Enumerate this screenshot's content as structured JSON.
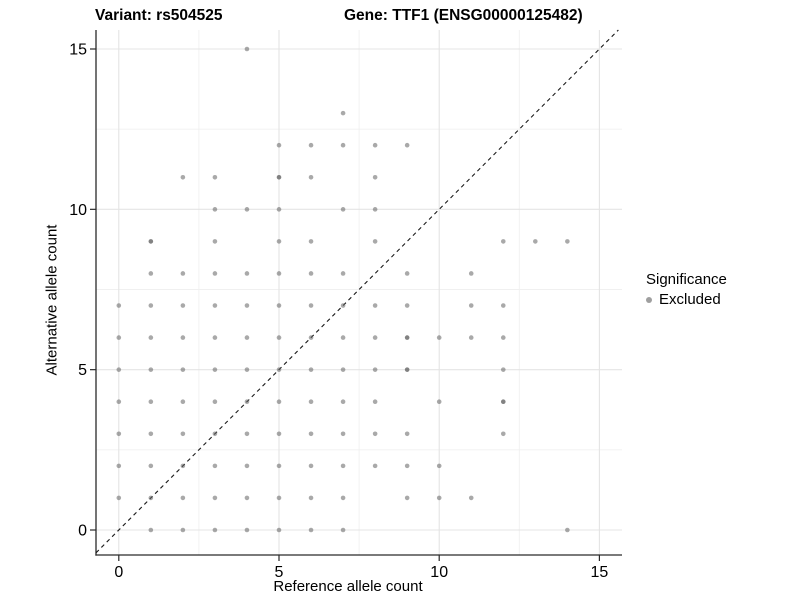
{
  "titles": {
    "variant": "Variant: rs504525",
    "gene": "Gene: TTF1 (ENSG00000125482)"
  },
  "legend": {
    "title": "Significance",
    "items": [
      {
        "label": "Excluded",
        "marker": "dot-icon",
        "color": "#9f9f9f"
      }
    ]
  },
  "chart_data": {
    "type": "scatter",
    "title_left": "Variant: rs504525",
    "title_right": "Gene: TTF1 (ENSG00000125482)",
    "xlabel": "Reference allele count",
    "ylabel": "Alternative allele count",
    "xlim": [
      -0.7,
      16.4
    ],
    "ylim": [
      -0.8,
      15.6
    ],
    "x_ticks": [
      0,
      5,
      10,
      15
    ],
    "y_ticks": [
      0,
      5,
      10,
      15
    ],
    "x_minor_gridlines": [
      2.5,
      7.5,
      12.5
    ],
    "y_minor_gridlines": [
      2.5,
      7.5,
      12.5
    ],
    "grid": true,
    "legend_position": "right",
    "point_color": "#a6a6a6",
    "major_grid_color": "#e4e4e4",
    "minor_grid_color": "#f0f0f0",
    "axis_color": "#2a2a2a",
    "identity_line": {
      "slope": 1,
      "intercept": 0,
      "style": "dashed",
      "color": "#1a1a1a"
    },
    "series": [
      {
        "name": "Excluded",
        "points": [
          [
            1,
            0
          ],
          [
            2,
            0
          ],
          [
            3,
            0
          ],
          [
            4,
            0
          ],
          [
            5,
            0
          ],
          [
            6,
            0
          ],
          [
            7,
            0
          ],
          [
            14,
            0
          ],
          [
            0,
            1
          ],
          [
            1,
            1
          ],
          [
            2,
            1
          ],
          [
            3,
            1
          ],
          [
            4,
            1
          ],
          [
            5,
            1
          ],
          [
            6,
            1
          ],
          [
            7,
            1
          ],
          [
            9,
            1
          ],
          [
            10,
            1
          ],
          [
            11,
            1
          ],
          [
            0,
            2
          ],
          [
            1,
            2
          ],
          [
            2,
            2
          ],
          [
            3,
            2
          ],
          [
            4,
            2
          ],
          [
            5,
            2
          ],
          [
            6,
            2
          ],
          [
            7,
            2
          ],
          [
            8,
            2
          ],
          [
            9,
            2
          ],
          [
            10,
            2
          ],
          [
            0,
            3
          ],
          [
            1,
            3
          ],
          [
            2,
            3
          ],
          [
            3,
            3
          ],
          [
            4,
            3
          ],
          [
            5,
            3
          ],
          [
            6,
            3
          ],
          [
            7,
            3
          ],
          [
            8,
            3
          ],
          [
            9,
            3
          ],
          [
            12,
            3
          ],
          [
            0,
            4
          ],
          [
            1,
            4
          ],
          [
            2,
            4
          ],
          [
            3,
            4
          ],
          [
            4,
            4
          ],
          [
            5,
            4
          ],
          [
            6,
            4
          ],
          [
            7,
            4
          ],
          [
            8,
            4
          ],
          [
            10,
            4
          ],
          [
            12,
            4
          ],
          [
            0,
            5
          ],
          [
            1,
            5
          ],
          [
            2,
            5
          ],
          [
            3,
            5
          ],
          [
            4,
            5
          ],
          [
            5,
            5
          ],
          [
            6,
            5
          ],
          [
            7,
            5
          ],
          [
            8,
            5
          ],
          [
            9,
            5
          ],
          [
            12,
            5
          ],
          [
            0,
            6
          ],
          [
            1,
            6
          ],
          [
            2,
            6
          ],
          [
            3,
            6
          ],
          [
            4,
            6
          ],
          [
            5,
            6
          ],
          [
            6,
            6
          ],
          [
            7,
            6
          ],
          [
            8,
            6
          ],
          [
            9,
            6
          ],
          [
            10,
            6
          ],
          [
            11,
            6
          ],
          [
            12,
            6
          ],
          [
            0,
            7
          ],
          [
            1,
            7
          ],
          [
            2,
            7
          ],
          [
            3,
            7
          ],
          [
            4,
            7
          ],
          [
            5,
            7
          ],
          [
            6,
            7
          ],
          [
            7,
            7
          ],
          [
            8,
            7
          ],
          [
            9,
            7
          ],
          [
            11,
            7
          ],
          [
            12,
            7
          ],
          [
            1,
            8
          ],
          [
            2,
            8
          ],
          [
            3,
            8
          ],
          [
            4,
            8
          ],
          [
            5,
            8
          ],
          [
            6,
            8
          ],
          [
            7,
            8
          ],
          [
            9,
            8
          ],
          [
            11,
            8
          ],
          [
            1,
            9
          ],
          [
            3,
            9
          ],
          [
            5,
            9
          ],
          [
            6,
            9
          ],
          [
            8,
            9
          ],
          [
            12,
            9
          ],
          [
            13,
            9
          ],
          [
            14,
            9
          ],
          [
            3,
            10
          ],
          [
            4,
            10
          ],
          [
            5,
            10
          ],
          [
            7,
            10
          ],
          [
            8,
            10
          ],
          [
            2,
            11
          ],
          [
            3,
            11
          ],
          [
            5,
            11
          ],
          [
            6,
            11
          ],
          [
            8,
            11
          ],
          [
            5,
            12
          ],
          [
            6,
            12
          ],
          [
            7,
            12
          ],
          [
            8,
            12
          ],
          [
            9,
            12
          ],
          [
            7,
            13
          ],
          [
            4,
            15
          ]
        ],
        "overlap_darker_points": [
          [
            1,
            9
          ],
          [
            5,
            11
          ],
          [
            9,
            5
          ],
          [
            9,
            6
          ],
          [
            12,
            4
          ]
        ]
      }
    ]
  }
}
